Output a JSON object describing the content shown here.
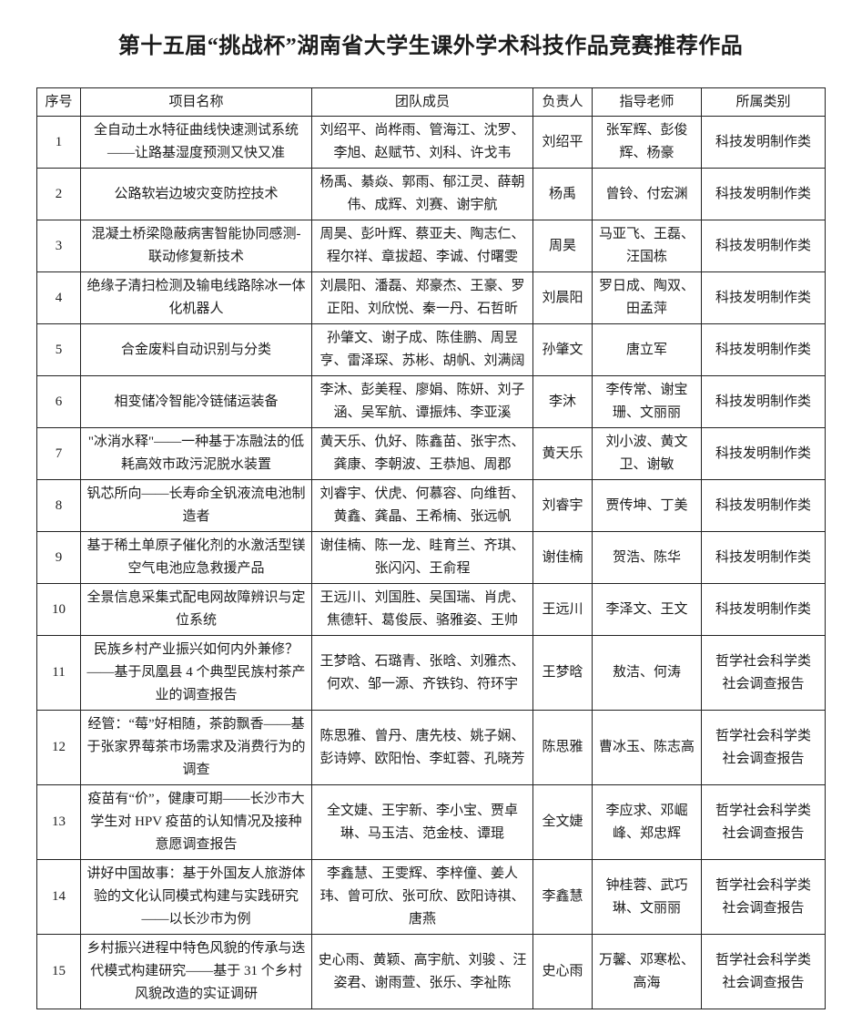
{
  "title": "第十五届“挑战杯”湖南省大学生课外学术科技作品竞赛推荐作品",
  "table": {
    "headers": [
      "序号",
      "项目名称",
      "团队成员",
      "负责人",
      "指导老师",
      "所属类别"
    ],
    "rows": [
      {
        "no": "1",
        "project": "全自动土水特征曲线快速测试系统——让路基湿度预测又快又准",
        "members": "刘绍平、尚桦雨、管海江、沈罗、李旭、赵赋节、刘科、许戈韦",
        "leader": "刘绍平",
        "advisors": "张军辉、彭俊辉、杨豪",
        "category": "科技发明制作类"
      },
      {
        "no": "2",
        "project": "公路软岩边坡灾变防控技术",
        "members": "杨禹、綦焱、郭雨、郁江灵、薛朝伟、成辉、刘赛、谢宇航",
        "leader": "杨禹",
        "advisors": "曾铃、付宏渊",
        "category": "科技发明制作类"
      },
      {
        "no": "3",
        "project": "混凝土桥梁隐蔽病害智能协同感测-联动修复新技术",
        "members": "周昊、彭叶辉、蔡亚夫、陶志仁、程尔祥、章拔超、李诚、付曙雯",
        "leader": "周昊",
        "advisors": "马亚飞、王磊、汪国栋",
        "category": "科技发明制作类"
      },
      {
        "no": "4",
        "project": "绝缘子清扫检测及输电线路除冰一体化机器人",
        "members": "刘晨阳、潘磊、郑豪杰、王豪、罗正阳、刘欣悦、秦一丹、石哲昕",
        "leader": "刘晨阳",
        "advisors": "罗日成、陶双、田孟萍",
        "category": "科技发明制作类"
      },
      {
        "no": "5",
        "project": "合金废料自动识别与分类",
        "members": "孙肇文、谢子成、陈佳鹏、周昱亨、雷泽琛、苏彬、胡帆、刘满阔",
        "leader": "孙肇文",
        "advisors": "唐立军",
        "category": "科技发明制作类"
      },
      {
        "no": "6",
        "project": "相变储冷智能冷链储运装备",
        "members": "李沐、彭美程、廖娟、陈妍、刘子涵、吴军航、谭振炜、李亚溪",
        "leader": "李沐",
        "advisors": "李传常、谢宝珊、文丽丽",
        "category": "科技发明制作类"
      },
      {
        "no": "7",
        "project": "\"冰消水释\"——一种基于冻融法的低耗高效市政污泥脱水装置",
        "members": "黄天乐、仇好、陈鑫苗、张宇杰、龚康、李朝波、王恭旭、周郡",
        "leader": "黄天乐",
        "advisors": "刘小波、黄文卫、谢敏",
        "category": "科技发明制作类"
      },
      {
        "no": "8",
        "project": "钒芯所向——长寿命全钒液流电池制造者",
        "members": "刘睿宇、伏虎、何慕容、向维哲、黄鑫、龚晶、王希楠、张远帆",
        "leader": "刘睿宇",
        "advisors": "贾传坤、丁美",
        "category": "科技发明制作类"
      },
      {
        "no": "9",
        "project": "基于稀土单原子催化剂的水激活型镁空气电池应急救援产品",
        "members": "谢佳楠、陈一龙、眭育兰、齐琪、张闪闪、王俞程",
        "leader": "谢佳楠",
        "advisors": "贺浩、陈华",
        "category": "科技发明制作类"
      },
      {
        "no": "10",
        "project": "全景信息采集式配电网故障辨识与定位系统",
        "members": "王远川、刘国胜、吴国瑞、肖虎、焦德轩、葛俊辰、骆雅姿、王帅",
        "leader": "王远川",
        "advisors": "李泽文、王文",
        "category": "科技发明制作类"
      },
      {
        "no": "11",
        "project": "民族乡村产业振兴如何内外兼修？——基于凤凰县 4 个典型民族村茶产业的调查报告",
        "members": "王梦晗、石璐青、张晗、刘雅杰、何欢、邹一源、齐铁钧、符环宇",
        "leader": "王梦晗",
        "advisors": "敖洁、何涛",
        "category": "哲学社会科学类\n社会调查报告"
      },
      {
        "no": "12",
        "project": "经管：“莓”好相随，茶韵飘香——基于张家界莓茶市场需求及消费行为的调查",
        "members": "陈思雅、曾丹、唐先枝、姚子娴、彭诗婷、欧阳怡、李虹蓉、孔晓芳",
        "leader": "陈思雅",
        "advisors": "曹冰玉、陈志高",
        "category": "哲学社会科学类\n社会调查报告"
      },
      {
        "no": "13",
        "project": "疫苗有“价”，健康可期——长沙市大学生对 HPV 疫苗的认知情况及接种意愿调查报告",
        "members": "全文婕、王宇新、李小宝、贾卓琳、马玉洁、范金枝、谭琨",
        "leader": "全文婕",
        "advisors": "李应求、邓崛峰、郑忠辉",
        "category": "哲学社会科学类\n社会调查报告"
      },
      {
        "no": "14",
        "project": "讲好中国故事：基于外国友人旅游体验的文化认同模式构建与实践研究——以长沙市为例",
        "members": "李鑫慧、王雯辉、李梓僮、姜人玮、曾可欣、张可欣、欧阳诗祺、唐燕",
        "leader": "李鑫慧",
        "advisors": "钟桂蓉、武巧琳、文丽丽",
        "category": "哲学社会科学类\n社会调查报告"
      },
      {
        "no": "15",
        "project": "乡村振兴进程中特色风貌的传承与迭代模式构建研究——基于 31 个乡村风貌改造的实证调研",
        "members": "史心雨、黄颖、高宇航、刘骏 、汪姿君、谢雨萱、张乐、李祉陈",
        "leader": "史心雨",
        "advisors": "万馨、邓寒松、高海",
        "category": "哲学社会科学类\n社会调查报告"
      }
    ]
  }
}
